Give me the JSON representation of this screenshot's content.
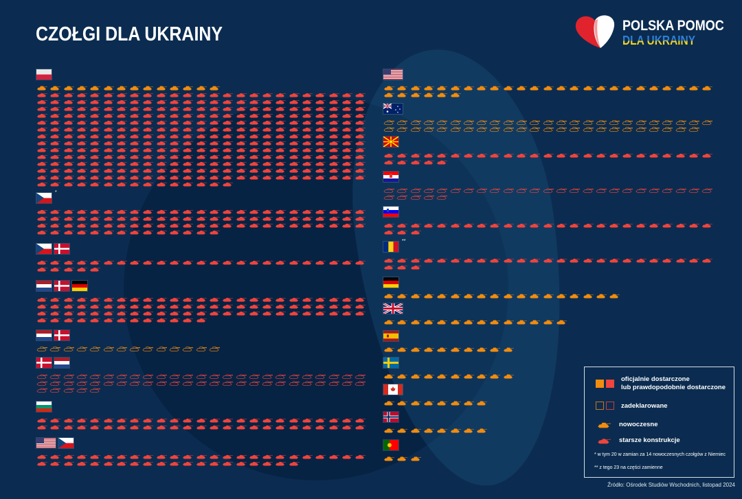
{
  "title": "CZOŁGI DLA UKRAINY",
  "logo": {
    "line1": "POLSKA POMOC",
    "line2": "DLA UKRAINY",
    "icon": "heart-logo"
  },
  "colors": {
    "background": "#0b2c50",
    "modern": "#f28c0f",
    "older": "#f0443c",
    "text": "#ffffff"
  },
  "legend": {
    "delivered": "oficjalnie dostarczone lub prawdopodobnie dostarczone",
    "delivered_line1": "oficjalnie dostarczone",
    "delivered_line2": "lub prawdopodobnie dostarczone",
    "declared": "zadeklarowane",
    "modern": "nowoczesne",
    "older": "starsze konstrukcje",
    "footnote1": "* w tym 20 w zamian za 14 nowoczesnych czołgów z Niemiec",
    "footnote2": "** z tego 23 na części zamienne"
  },
  "source": "Źródło: Ośrodek Studiów Wschodnich, listopad 2024",
  "chart_data": {
    "type": "bar",
    "title": "CZOŁGI DLA UKRAINY",
    "unit_per_icon": 1,
    "groups": [
      {
        "flags": [
          "pl"
        ],
        "note": "",
        "tanks": [
          {
            "kind": "modern",
            "status": "delivered",
            "count": 14
          },
          {
            "kind": "older",
            "status": "delivered",
            "count": 340
          }
        ]
      },
      {
        "flags": [
          "cz"
        ],
        "note": "*",
        "tanks": [
          {
            "kind": "older",
            "status": "delivered",
            "count": 89
          }
        ]
      },
      {
        "flags": [
          "cz",
          "dk"
        ],
        "note": "",
        "tanks": [
          {
            "kind": "older",
            "status": "delivered",
            "count": 30
          }
        ]
      },
      {
        "flags": [
          "nl",
          "dk",
          "de"
        ],
        "note": "",
        "tanks": [
          {
            "kind": "older",
            "status": "delivered",
            "count": 88
          }
        ]
      },
      {
        "flags": [
          "nl",
          "dk"
        ],
        "note": "",
        "tanks": [
          {
            "kind": "modern",
            "status": "declared",
            "count": 14
          }
        ]
      },
      {
        "flags": [
          "dk",
          "nl"
        ],
        "note": "",
        "tanks": [
          {
            "kind": "older",
            "status": "declared",
            "count": 55
          }
        ]
      },
      {
        "flags": [
          "bg"
        ],
        "note": "",
        "tanks": [
          {
            "kind": "older",
            "status": "delivered",
            "count": 50
          }
        ]
      },
      {
        "flags": [
          "us",
          "cz"
        ],
        "note": "",
        "tanks": [
          {
            "kind": "older",
            "status": "delivered",
            "count": 45
          }
        ]
      },
      {
        "flags": [
          "us"
        ],
        "note": "",
        "tanks": [
          {
            "kind": "modern",
            "status": "delivered",
            "count": 31
          }
        ]
      },
      {
        "flags": [
          "au"
        ],
        "note": "",
        "tanks": [
          {
            "kind": "modern",
            "status": "declared",
            "count": 49
          }
        ]
      },
      {
        "flags": [
          "mk"
        ],
        "note": "",
        "tanks": [
          {
            "kind": "older",
            "status": "delivered",
            "count": 30
          }
        ]
      },
      {
        "flags": [
          "hr"
        ],
        "note": "",
        "tanks": [
          {
            "kind": "older",
            "status": "declared",
            "count": 30
          }
        ]
      },
      {
        "flags": [
          "si"
        ],
        "note": "",
        "tanks": [
          {
            "kind": "older",
            "status": "delivered",
            "count": 28
          }
        ]
      },
      {
        "flags": [
          "ro"
        ],
        "note": "**",
        "tanks": [
          {
            "kind": "older",
            "status": "delivered",
            "count": 28
          }
        ]
      },
      {
        "flags": [
          "de"
        ],
        "note": "",
        "tanks": [
          {
            "kind": "modern",
            "status": "delivered",
            "count": 18
          }
        ]
      },
      {
        "flags": [
          "gb"
        ],
        "note": "",
        "tanks": [
          {
            "kind": "modern",
            "status": "delivered",
            "count": 14
          }
        ]
      },
      {
        "flags": [
          "es"
        ],
        "note": "",
        "tanks": [
          {
            "kind": "modern",
            "status": "delivered",
            "count": 10
          }
        ]
      },
      {
        "flags": [
          "se"
        ],
        "note": "",
        "tanks": [
          {
            "kind": "modern",
            "status": "delivered",
            "count": 10
          }
        ]
      },
      {
        "flags": [
          "ca"
        ],
        "note": "",
        "tanks": [
          {
            "kind": "modern",
            "status": "delivered",
            "count": 8
          }
        ]
      },
      {
        "flags": [
          "no"
        ],
        "note": "",
        "tanks": [
          {
            "kind": "modern",
            "status": "delivered",
            "count": 8
          }
        ]
      },
      {
        "flags": [
          "pt"
        ],
        "note": "",
        "tanks": [
          {
            "kind": "modern",
            "status": "delivered",
            "count": 3
          }
        ]
      }
    ]
  }
}
